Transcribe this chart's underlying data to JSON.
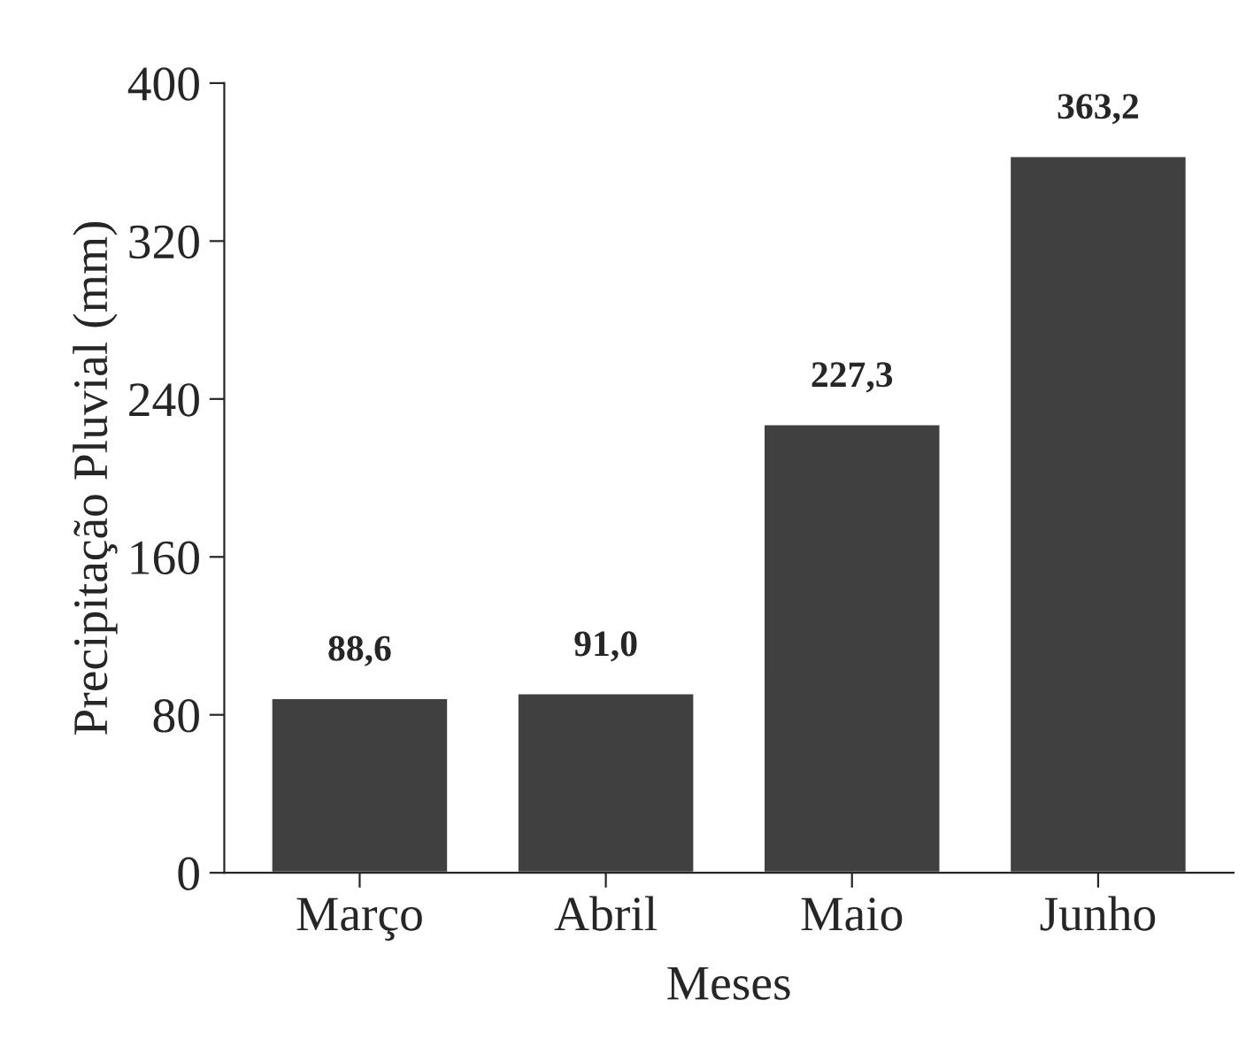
{
  "chart_data": {
    "type": "bar",
    "xlabel": "Meses",
    "ylabel": "Precipitação Pluvial (mm)",
    "categories": [
      "Março",
      "Abril",
      "Maio",
      "Junho"
    ],
    "values": [
      88.6,
      91.0,
      227.3,
      363.2
    ],
    "value_labels": [
      "88,6",
      "91,0",
      "227,3",
      "363,2"
    ],
    "color": "#404040",
    "ylim": [
      0,
      400
    ],
    "yticks": [
      0,
      80,
      160,
      240,
      320,
      400
    ],
    "grid": false,
    "legend": false
  }
}
